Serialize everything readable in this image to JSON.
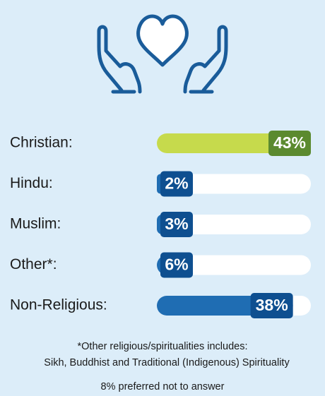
{
  "chart_data": {
    "type": "bar",
    "orientation": "horizontal",
    "categories": [
      "Christian:",
      "Hindu:",
      "Muslim:",
      "Other*:",
      "Non-Religious:"
    ],
    "values": [
      43,
      2,
      3,
      6,
      38
    ],
    "value_labels": [
      "43%",
      "2%",
      "3%",
      "6%",
      "38%"
    ],
    "colors": [
      "#c6da4c",
      "#1f6db3",
      "#1f6db3",
      "#1f6db3",
      "#1f6db3"
    ],
    "label_colors": [
      "#5b8a2f",
      "#0e4f90",
      "#0e4f90",
      "#0e4f90",
      "#0e4f90"
    ],
    "xlim": [
      0,
      43
    ],
    "annotations": [
      "*Other religious/spiritualities includes:",
      "Sikh, Buddhist and Traditional (Indigenous) Spirituality",
      "8% preferred not to answer"
    ]
  }
}
